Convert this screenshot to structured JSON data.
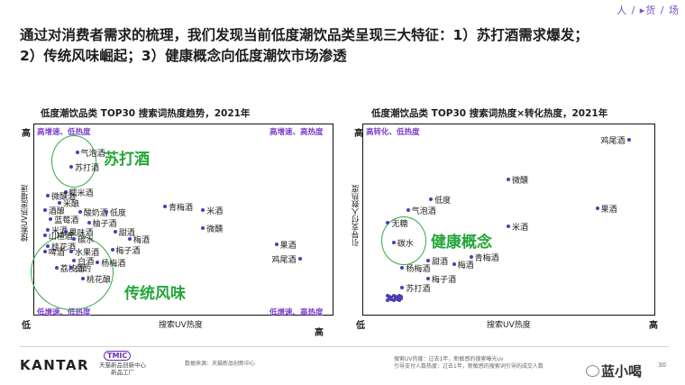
{
  "nav": {
    "breadcrumb": "人 / ▸货 / 场"
  },
  "title": {
    "line1": "通过对消费者需求的梳理，我们发现当前低度潮饮品类呈现三大特征：1）苏打酒需求爆发；",
    "line2": "2）传统风味崛起；3）健康概念向低度潮饮市场渗透"
  },
  "colors": {
    "accent": "#7b3fc9",
    "callout": "#23a538",
    "dot": "#4a3db7"
  },
  "chart_data": [
    {
      "type": "scatter",
      "title": "低度潮饮品类 TOP30 搜索词热度趋势，2021年",
      "xlabel": "搜索UV热度",
      "ylabel": "搜索UV热度增速",
      "x_low": "低",
      "x_high": "高",
      "y_high": "高",
      "quadrants": {
        "top_left": "高增速、低热度",
        "top_right": "高增速、高热度",
        "bottom_left": "低增速、低热度",
        "bottom_right": "低增速、高热度"
      },
      "callouts": [
        "苏打酒",
        "传统风味"
      ],
      "points": [
        {
          "label": "气泡酒",
          "x": 0.14,
          "y": 0.88
        },
        {
          "label": "苏打酒",
          "x": 0.12,
          "y": 0.8
        },
        {
          "label": "糯米酒",
          "x": 0.1,
          "y": 0.66
        },
        {
          "label": "微醺酒",
          "x": 0.04,
          "y": 0.64
        },
        {
          "label": "米酿",
          "x": 0.08,
          "y": 0.6
        },
        {
          "label": "酒酿",
          "x": 0.03,
          "y": 0.56
        },
        {
          "label": "酸奶酒",
          "x": 0.15,
          "y": 0.55
        },
        {
          "label": "低度",
          "x": 0.24,
          "y": 0.55
        },
        {
          "label": "青梅酒",
          "x": 0.44,
          "y": 0.58
        },
        {
          "label": "米酒",
          "x": 0.57,
          "y": 0.56
        },
        {
          "label": "蓝莓酒",
          "x": 0.05,
          "y": 0.51
        },
        {
          "label": "柚子酒",
          "x": 0.18,
          "y": 0.49
        },
        {
          "label": "微醺",
          "x": 0.57,
          "y": 0.46
        },
        {
          "label": "米酒",
          "x": 0.04,
          "y": 0.45
        },
        {
          "label": "果味酒",
          "x": 0.1,
          "y": 0.44
        },
        {
          "label": "甜酒",
          "x": 0.27,
          "y": 0.44
        },
        {
          "label": "山楂酒",
          "x": 0.03,
          "y": 0.42
        },
        {
          "label": "碳水",
          "x": 0.13,
          "y": 0.4
        },
        {
          "label": "梅酒",
          "x": 0.32,
          "y": 0.4
        },
        {
          "label": "桂花酒",
          "x": 0.04,
          "y": 0.36
        },
        {
          "label": "果酒",
          "x": 0.82,
          "y": 0.37
        },
        {
          "label": "啤酒",
          "x": 0.03,
          "y": 0.33
        },
        {
          "label": "水果酒",
          "x": 0.12,
          "y": 0.33
        },
        {
          "label": "梅子酒",
          "x": 0.26,
          "y": 0.34
        },
        {
          "label": "白酒",
          "x": 0.13,
          "y": 0.28
        },
        {
          "label": "杨梅酒",
          "x": 0.21,
          "y": 0.27
        },
        {
          "label": "鸡尾酒",
          "x": 0.9,
          "y": 0.29
        },
        {
          "label": "荔枝酒",
          "x": 0.07,
          "y": 0.24
        },
        {
          "label": "白酌",
          "x": 0.12,
          "y": 0.24
        },
        {
          "label": "桃花酿",
          "x": 0.16,
          "y": 0.18
        }
      ]
    },
    {
      "type": "scatter",
      "title": "低度潮饮品类 TOP30 搜索词热度×转化热度，2021年",
      "xlabel": "搜索UV热度",
      "ylabel": "引导支付人数热度",
      "x_low": "低",
      "x_high": "高",
      "y_high": "高",
      "quadrants": {
        "top_left": "高转化、低热度"
      },
      "callouts": [
        "健康概念"
      ],
      "points": [
        {
          "label": "鸡尾酒",
          "x": 0.92,
          "y": 0.95
        },
        {
          "label": "微醺",
          "x": 0.5,
          "y": 0.73
        },
        {
          "label": "低度",
          "x": 0.23,
          "y": 0.62
        },
        {
          "label": "果酒",
          "x": 0.81,
          "y": 0.57
        },
        {
          "label": "气泡酒",
          "x": 0.15,
          "y": 0.56
        },
        {
          "label": "无糖",
          "x": 0.08,
          "y": 0.49
        },
        {
          "label": "米酒",
          "x": 0.5,
          "y": 0.47
        },
        {
          "label": "碳水",
          "x": 0.1,
          "y": 0.38
        },
        {
          "label": "甜酒",
          "x": 0.22,
          "y": 0.28
        },
        {
          "label": "青梅酒",
          "x": 0.37,
          "y": 0.3
        },
        {
          "label": "梅酒",
          "x": 0.31,
          "y": 0.26
        },
        {
          "label": "杨梅酒",
          "x": 0.13,
          "y": 0.24
        },
        {
          "label": "梅子酒",
          "x": 0.22,
          "y": 0.18
        },
        {
          "label": "苏打酒",
          "x": 0.13,
          "y": 0.13
        }
      ],
      "cluster_dots": 16
    }
  ],
  "footer": {
    "brand": "KANTAR",
    "tmic_badge": "TMIC",
    "tmic_line1": "天猫新品创新中心",
    "tmic_line2": "新品工厂",
    "source": "数据来源：天猫新品创新中心",
    "note1": "搜索UV热度：过去1年，新敏感的搜索曝光uv",
    "note2": "引导支付人数热度：过去1年，新敏感的搜索词引导的成交人数",
    "wechat": "蓝小喝",
    "page": "30"
  }
}
